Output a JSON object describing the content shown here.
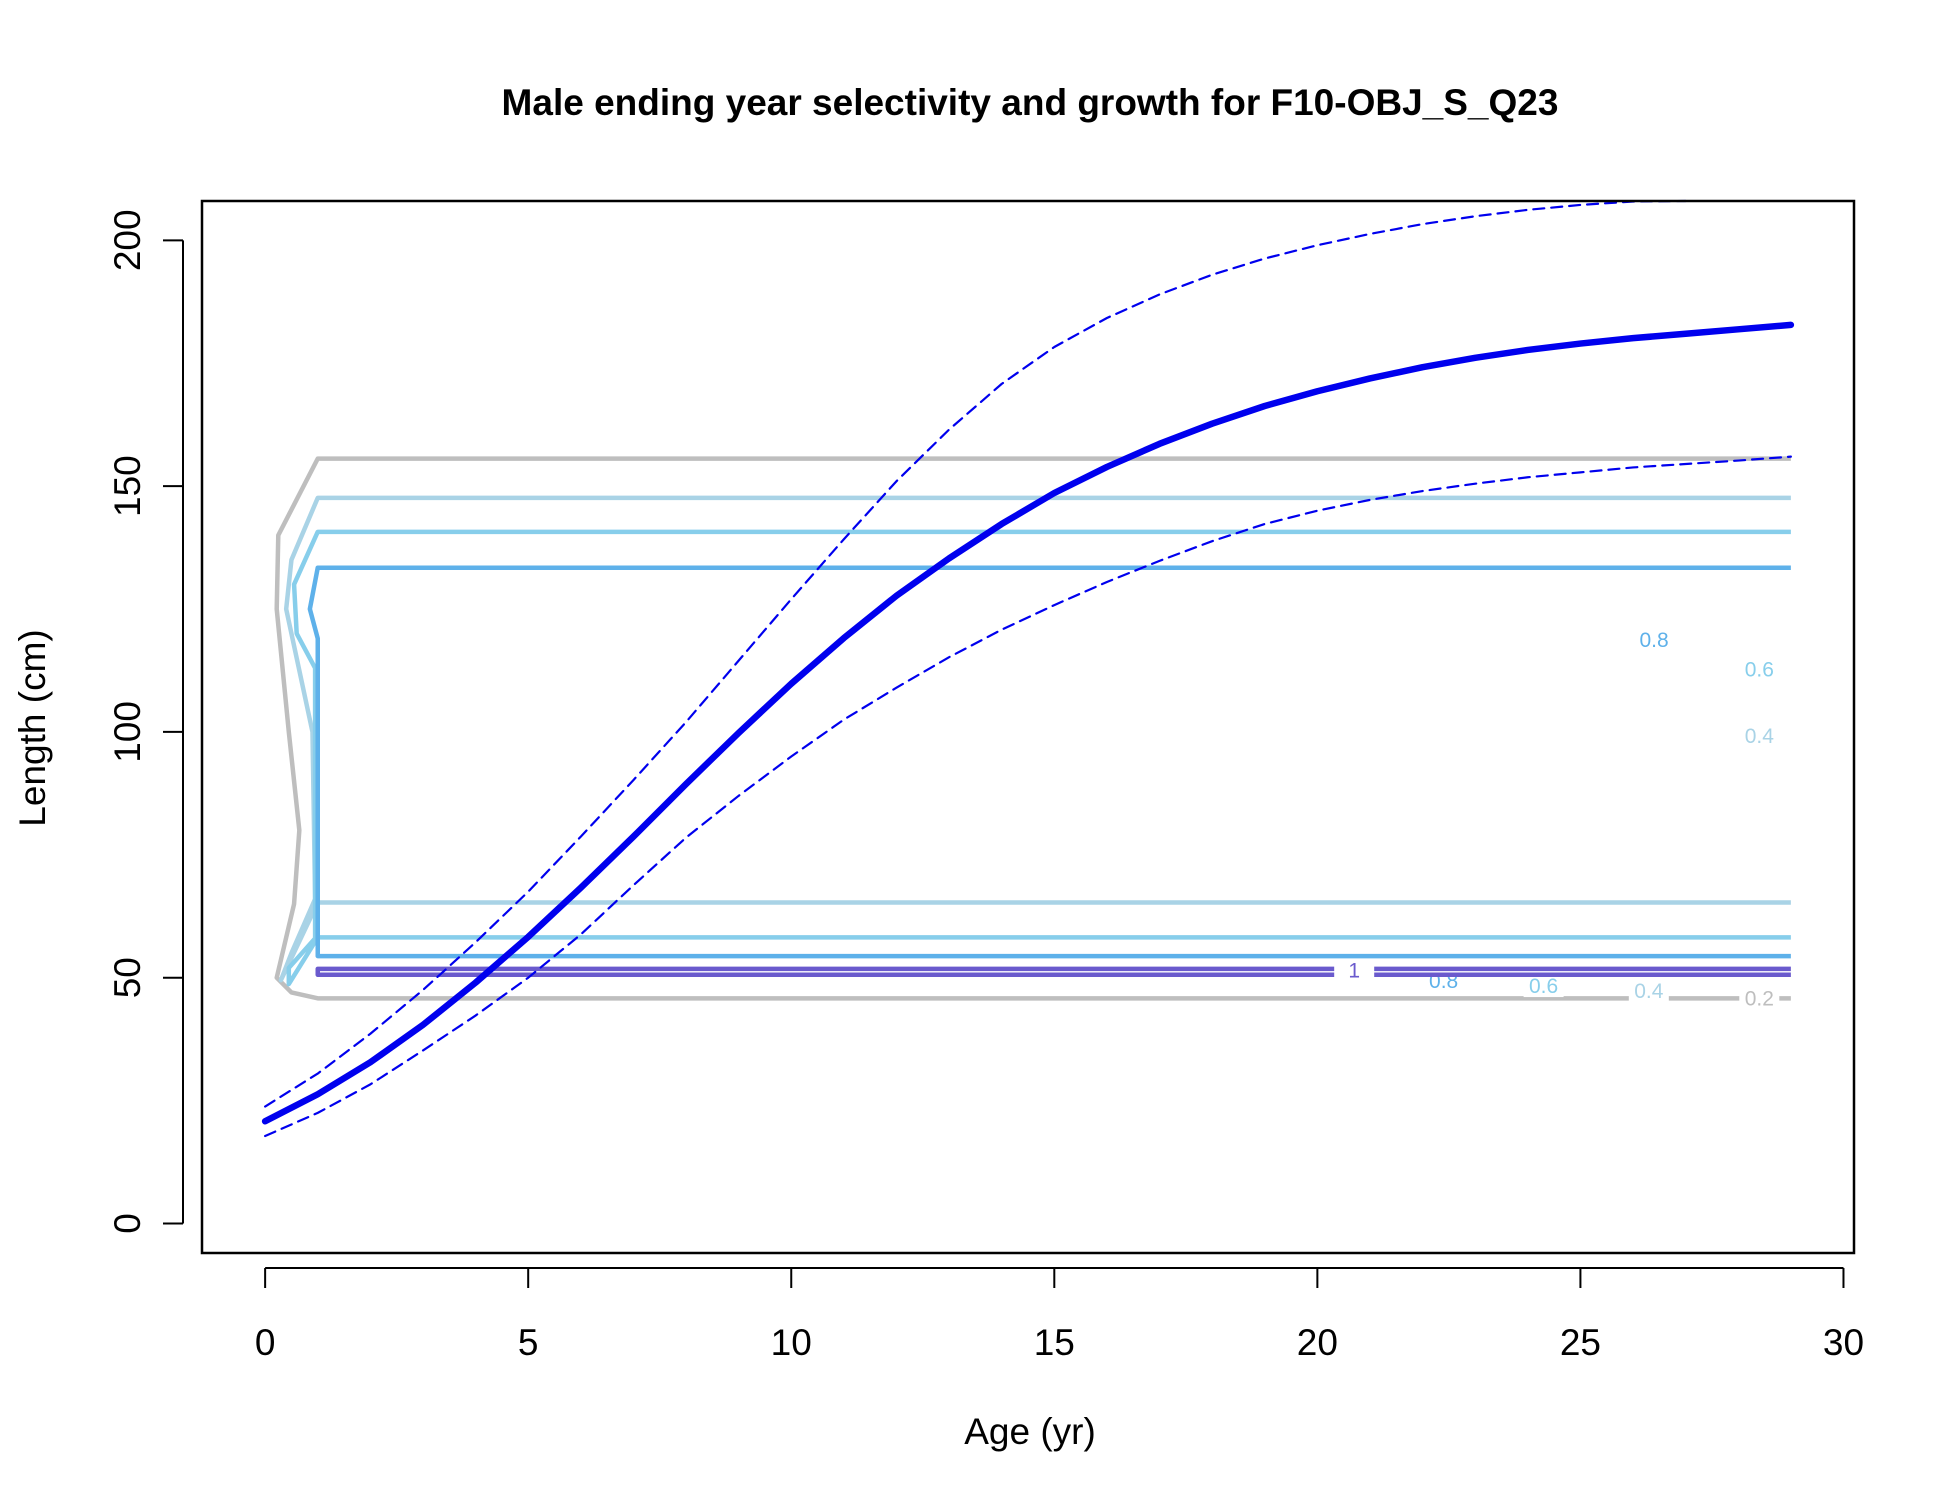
{
  "chart_data": {
    "type": "line",
    "title": "Male ending year selectivity and growth for F10-OBJ_S_Q23",
    "xlabel": "Age (yr)",
    "ylabel": "Length (cm)",
    "xlim": [
      -1.2,
      30.2
    ],
    "ylim": [
      -6,
      208
    ],
    "x_ticks": [
      0,
      5,
      10,
      15,
      20,
      25,
      30
    ],
    "y_ticks": [
      0,
      50,
      100,
      150,
      200
    ],
    "x_tick_labels": [
      "0",
      "5",
      "10",
      "15",
      "20",
      "25",
      "30"
    ],
    "y_tick_labels": [
      "0",
      "50",
      "100",
      "150",
      "200"
    ],
    "grid": false,
    "legend": "none",
    "series": [
      {
        "role": "mean",
        "color": "#0000ee",
        "style": "solid",
        "x": [
          0,
          1,
          2,
          3,
          4,
          5,
          6,
          7,
          8,
          9,
          10,
          11,
          12,
          13,
          14,
          15,
          16,
          17,
          18,
          19,
          20,
          21,
          22,
          23,
          24,
          25,
          26,
          27,
          28,
          29
        ],
        "y": [
          20.8,
          26.3,
          32.8,
          40.4,
          49.0,
          58.3,
          68.3,
          78.7,
          89.4,
          99.8,
          109.8,
          119.1,
          127.7,
          135.3,
          142.3,
          148.6,
          153.9,
          158.6,
          162.7,
          166.3,
          169.3,
          171.9,
          174.2,
          176.1,
          177.7,
          179.0,
          180.1,
          181.0,
          181.9,
          182.8
        ]
      },
      {
        "role": "upper-interval",
        "color": "#0000ee",
        "style": "dashed",
        "x": [
          0,
          1,
          2,
          3,
          4,
          5,
          6,
          7,
          8,
          9,
          10,
          11,
          12,
          13,
          14,
          15,
          16,
          17,
          18,
          19,
          20,
          21,
          22,
          23,
          24,
          25,
          26,
          27
        ],
        "y": [
          23.8,
          30.5,
          38.6,
          47.5,
          57.2,
          67.5,
          78.7,
          90.2,
          102.0,
          114.5,
          127.0,
          139.2,
          151.0,
          161.5,
          170.8,
          178.3,
          184.2,
          189.0,
          193.0,
          196.3,
          199.0,
          201.3,
          203.3,
          204.9,
          206.2,
          207.2,
          207.9,
          208.0
        ]
      },
      {
        "role": "lower-interval",
        "color": "#0000ee",
        "style": "dashed",
        "x": [
          0,
          1,
          2,
          3,
          4,
          5,
          6,
          7,
          8,
          9,
          10,
          11,
          12,
          13,
          14,
          15,
          16,
          17,
          18,
          19,
          20,
          21,
          22,
          23,
          24,
          25,
          26,
          27,
          28,
          29
        ],
        "y": [
          17.8,
          22.5,
          28.3,
          35.2,
          42.3,
          50.0,
          58.8,
          68.8,
          78.5,
          87.0,
          95.0,
          102.5,
          109.0,
          115.2,
          120.8,
          125.8,
          130.5,
          134.8,
          138.8,
          142.3,
          145.0,
          147.2,
          149.0,
          150.5,
          151.8,
          152.8,
          153.8,
          154.5,
          155.2,
          156.0
        ]
      }
    ],
    "contours": [
      {
        "level": 0.2,
        "color": "#bebebe",
        "x_start": 1.0,
        "x_end": 29,
        "lower_y": 45.8,
        "upper_y": 155.6,
        "curve": [
          [
            0.25,
            140
          ],
          [
            0.22,
            125
          ],
          [
            0.45,
            100
          ],
          [
            0.65,
            80
          ],
          [
            0.55,
            65
          ],
          [
            0.22,
            50
          ],
          [
            0.5,
            47
          ]
        ],
        "labels": [
          {
            "text": "0.2",
            "x": 28.4,
            "y": 45.8
          }
        ]
      },
      {
        "level": 0.4,
        "color": "#a9d3e6",
        "x_start": 1.0,
        "x_end": 29,
        "lower_y": 65.3,
        "upper_y": 147.6,
        "curve": [
          [
            0.5,
            135
          ],
          [
            0.4,
            125
          ],
          [
            0.9,
            100
          ],
          [
            0.95,
            66
          ],
          [
            0.5,
            55
          ],
          [
            0.3,
            49.5
          ]
        ],
        "labels": [
          {
            "text": "0.4",
            "x": 28.4,
            "y": 99.2
          },
          {
            "text": "0.4",
            "x": 26.3,
            "y": 47.3
          }
        ]
      },
      {
        "level": 0.6,
        "color": "#87ceeb",
        "x_start": 1.0,
        "x_end": 29,
        "lower_y": 58.2,
        "upper_y": 140.7,
        "curve": [
          [
            0.55,
            130
          ],
          [
            0.6,
            120
          ],
          [
            0.95,
            113
          ],
          [
            0.95,
            58
          ],
          [
            0.45,
            52
          ],
          [
            0.45,
            48.7
          ]
        ],
        "labels": [
          {
            "text": "0.6",
            "x": 28.4,
            "y": 112.7
          },
          {
            "text": "0.6",
            "x": 24.3,
            "y": 48.3
          }
        ]
      },
      {
        "level": 0.8,
        "color": "#5eb1ea",
        "x_start": 1.0,
        "x_end": 29,
        "lower_y": 54.4,
        "upper_y": 133.4,
        "curve": [
          [
            0.85,
            125
          ],
          [
            1.0,
            119
          ]
        ],
        "labels": [
          {
            "text": "0.8",
            "x": 26.4,
            "y": 118.7
          },
          {
            "text": "0.8",
            "x": 22.4,
            "y": 49.3
          }
        ]
      },
      {
        "level": 1,
        "color": "#6a5acd",
        "x_start": 1.0,
        "x_end": 29,
        "lower_y": 51.8,
        "upper_y": 50.6,
        "curve": [],
        "labels": [
          {
            "text": "1",
            "x": 20.7,
            "y": 51.5
          }
        ]
      }
    ]
  }
}
